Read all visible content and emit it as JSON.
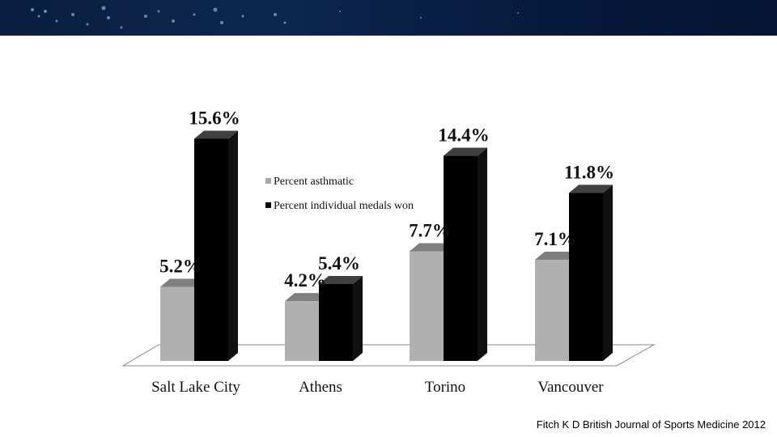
{
  "chart_data": {
    "type": "bar",
    "categories": [
      "Salt Lake City",
      "Athens",
      "Torino",
      "Vancouver"
    ],
    "series": [
      {
        "name": "Percent asthmatic",
        "values": [
          5.2,
          4.2,
          7.7,
          7.1
        ],
        "color": "#b0b0b0"
      },
      {
        "name": "Percent individual medals won",
        "values": [
          15.6,
          5.4,
          14.4,
          11.8
        ],
        "color": "#000000"
      }
    ],
    "value_labels": [
      [
        "5.2%",
        "4.2%",
        "7.7%",
        "7.1%"
      ],
      [
        "15.6%",
        "5.4%",
        "14.4%",
        "11.8%"
      ]
    ],
    "ylim": [
      0,
      16
    ],
    "grid": false,
    "legend_position": "center",
    "style": "3d"
  },
  "citation": "Fitch K D British Journal of Sports Medicine 2012",
  "colors": {
    "banner": "#0a1f3f",
    "asthmatic": "#b0b0b0",
    "medals": "#000000"
  }
}
